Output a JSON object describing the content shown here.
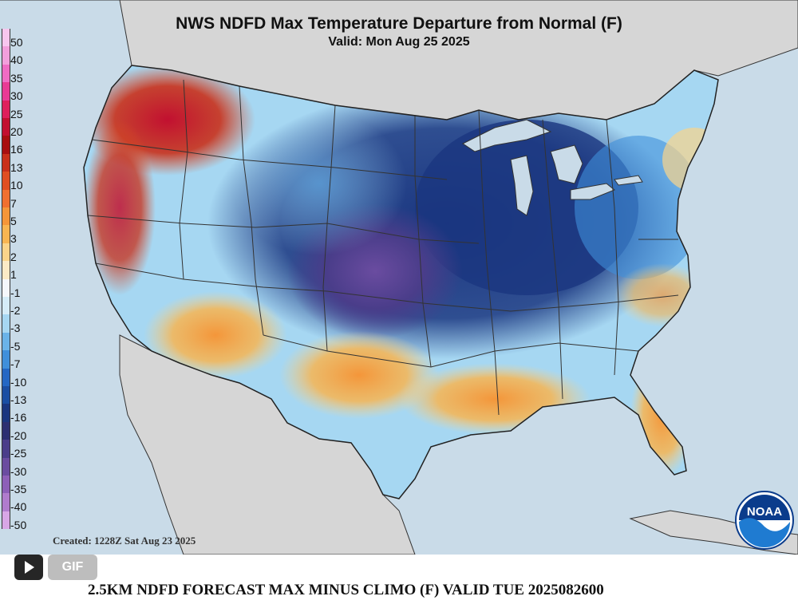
{
  "map": {
    "title": "NWS NDFD Max Temperature Departure from Normal (F)",
    "valid": "Valid: Mon Aug 25 2025",
    "created": "Created: 1228Z Sat Aug 23 2025",
    "logo_text": "NOAA",
    "logo_icon": "noaa-logo-icon",
    "colors": {
      "ocean": "#c9dbe8",
      "land_outside": "#d6d6d6",
      "state_lines": "#333333"
    }
  },
  "legend": {
    "items": [
      {
        "label": "50",
        "color": "#f7c6ee"
      },
      {
        "label": "40",
        "color": "#f29fdc"
      },
      {
        "label": "35",
        "color": "#ef6cc4"
      },
      {
        "label": "30",
        "color": "#e83a95"
      },
      {
        "label": "25",
        "color": "#de1f5c"
      },
      {
        "label": "20",
        "color": "#c21030"
      },
      {
        "label": "16",
        "color": "#a80f10"
      },
      {
        "label": "13",
        "color": "#c9301a"
      },
      {
        "label": "10",
        "color": "#e04e22"
      },
      {
        "label": "7",
        "color": "#f07030"
      },
      {
        "label": "5",
        "color": "#f4963a"
      },
      {
        "label": "3",
        "color": "#f7b552"
      },
      {
        "label": "2",
        "color": "#fad48a"
      },
      {
        "label": "1",
        "color": "#fbeac6"
      },
      {
        "label": "-1",
        "color": "#f5f7fb"
      },
      {
        "label": "-2",
        "color": "#d5ecf8"
      },
      {
        "label": "-3",
        "color": "#a6d7f2"
      },
      {
        "label": "-5",
        "color": "#6ab3e8"
      },
      {
        "label": "-7",
        "color": "#3f8fdb"
      },
      {
        "label": "-10",
        "color": "#2467c4"
      },
      {
        "label": "-13",
        "color": "#1a4ea3"
      },
      {
        "label": "-16",
        "color": "#1a3680"
      },
      {
        "label": "-20",
        "color": "#2c2f72"
      },
      {
        "label": "-25",
        "color": "#4a3d8a"
      },
      {
        "label": "-30",
        "color": "#6a4ca0"
      },
      {
        "label": "-35",
        "color": "#8d5fb8"
      },
      {
        "label": "-40",
        "color": "#b07ccd"
      },
      {
        "label": "-50",
        "color": "#d8a6e6"
      }
    ]
  },
  "player": {
    "play_icon": "play-icon",
    "gif_label": "GIF",
    "caption": "2.5KM NDFD FORECAST MAX MINUS CLIMO (F) VALID TUE 2025082600"
  }
}
